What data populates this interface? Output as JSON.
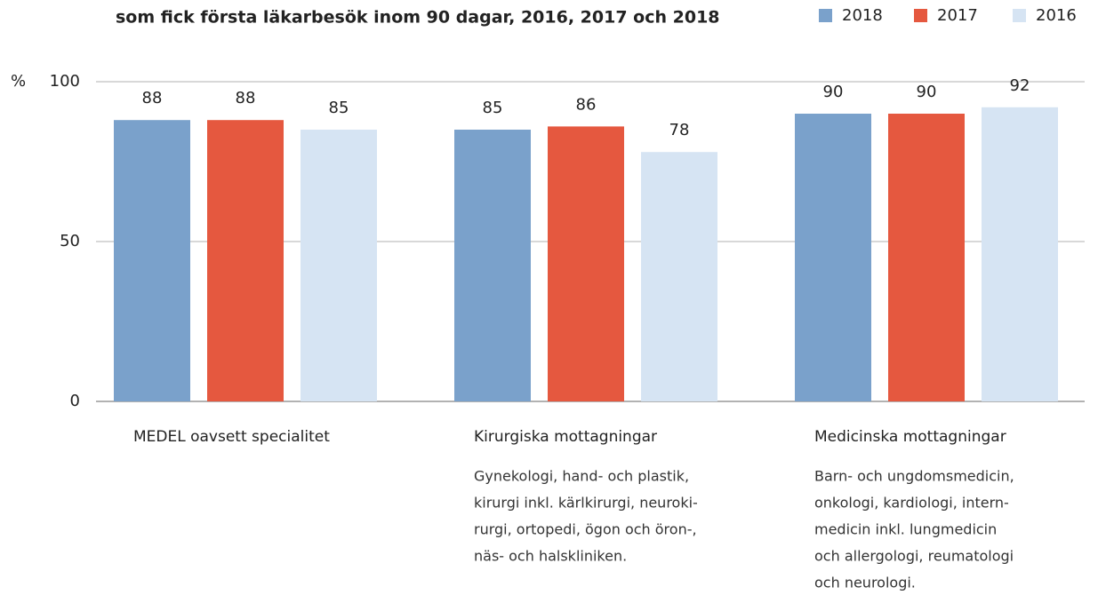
{
  "chart_data": {
    "type": "bar",
    "title": "som fick första läkarbesök inom 90 dagar, 2016, 2017 och 2018",
    "y_label": "%",
    "categories": [
      "MEDEL oavsett specialitet",
      "Kirurgiska mottagningar",
      "Medicinska mottagningar"
    ],
    "category_notes": [
      null,
      [
        "Gynekologi, hand- och plastik,",
        "kirurgi inkl. kärlkirurgi, neuroki-",
        "rurgi, ortopedi, ögon och öron-,",
        "näs- och halskliniken."
      ],
      [
        "Barn- och ungdomsmedicin,",
        "onkologi, kardiologi, intern-",
        "medicin inkl. lungmedicin",
        "och allergologi, reumatologi",
        "och neurologi."
      ]
    ],
    "series": [
      {
        "name": "2018",
        "color": "#7aa1cb",
        "values": [
          88,
          85,
          90
        ]
      },
      {
        "name": "2017",
        "color": "#e5583f",
        "values": [
          88,
          86,
          90
        ]
      },
      {
        "name": "2016",
        "color": "#d6e4f3",
        "values": [
          85,
          78,
          92
        ]
      }
    ],
    "ylim": [
      0,
      100
    ],
    "yticks": [
      0,
      50,
      100
    ],
    "grid": true,
    "legend": "top-right"
  }
}
